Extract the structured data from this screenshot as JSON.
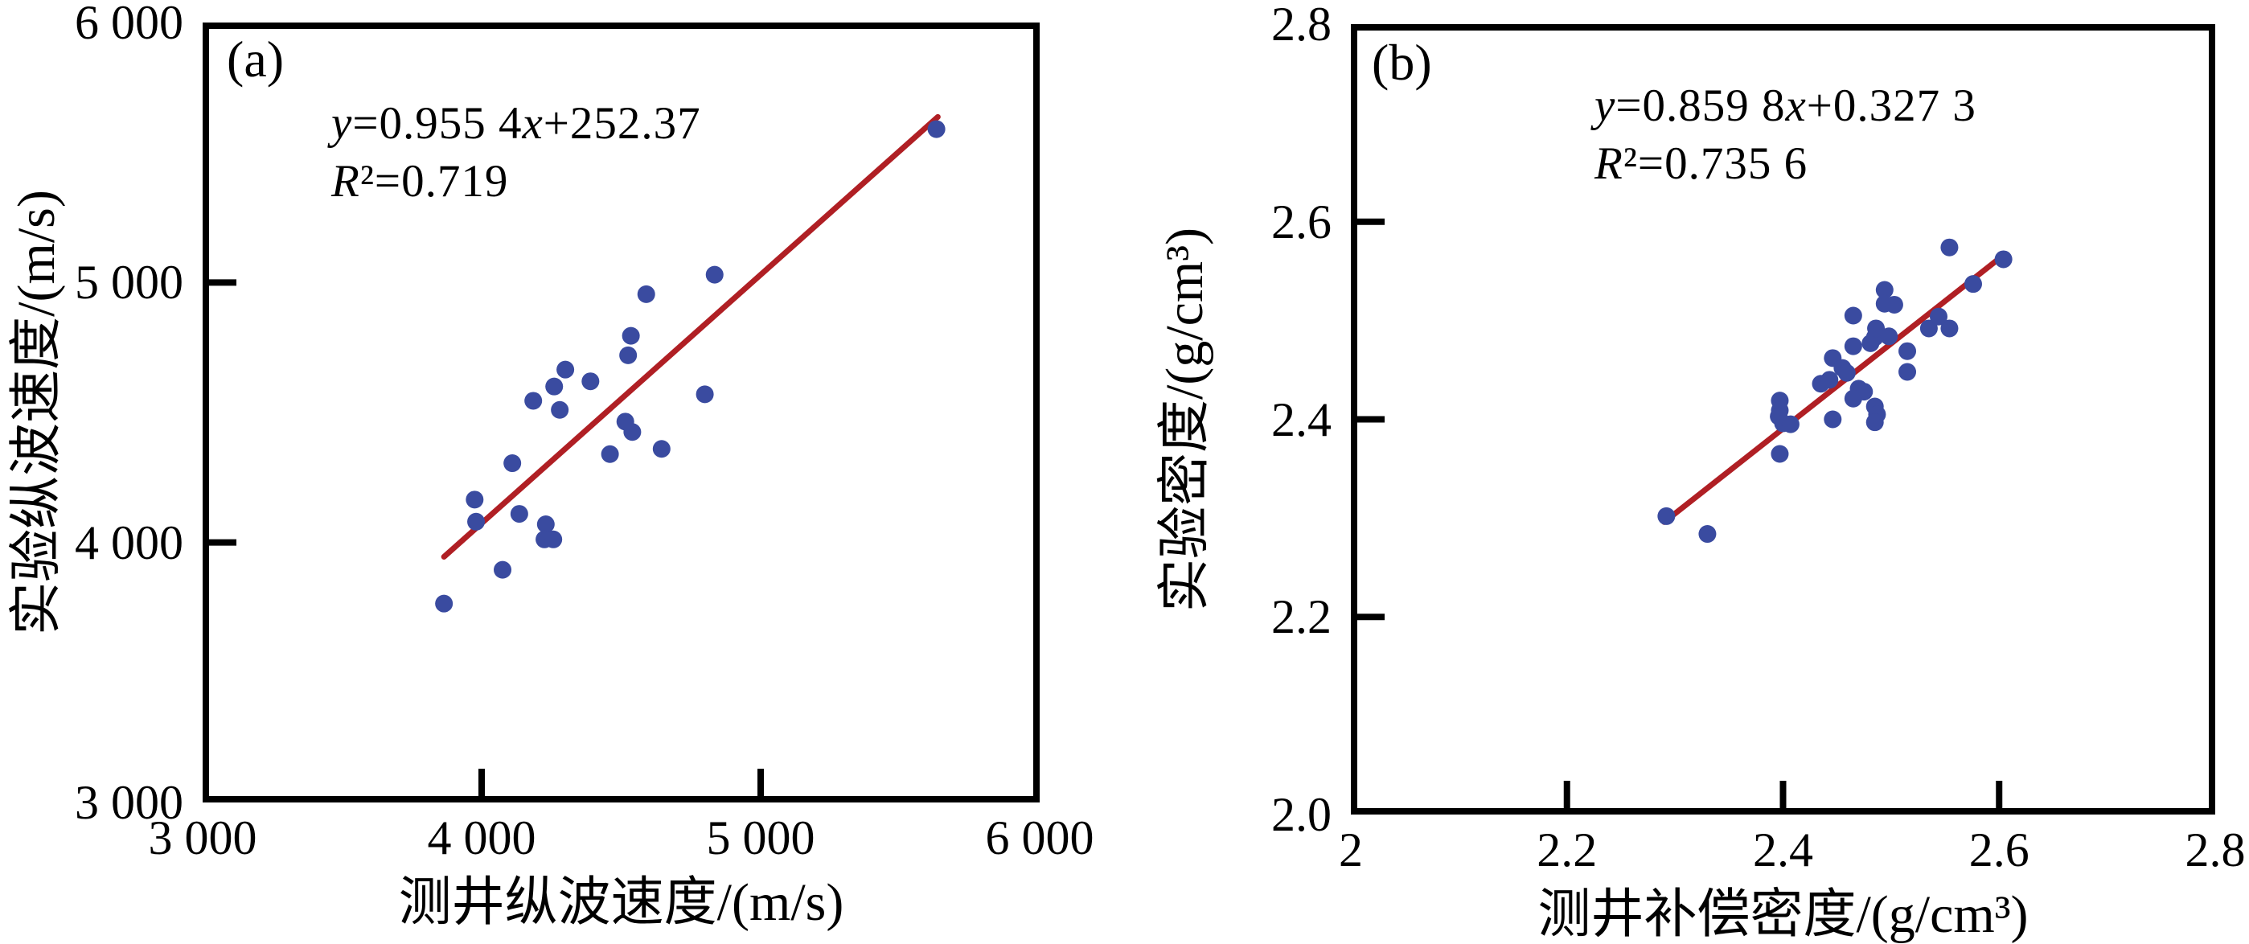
{
  "figure": {
    "background": "#ffffff",
    "point_color": "#3a4ba0",
    "trend_line_color": "#b01f24",
    "axis_color": "#000000"
  },
  "chart_data": [
    {
      "type": "scatter",
      "panel_label": "(a)",
      "equation": "y=0.955 4x+252.37",
      "r_squared": "R²=0.719",
      "xlabel": "测井纵波速度/(m/s)",
      "ylabel": "实验纵波速度/(m/s)",
      "xlim": [
        3000,
        6000
      ],
      "ylim": [
        3000,
        6000
      ],
      "grid": false,
      "x_tick_values": [
        3000,
        4000,
        5000,
        6000
      ],
      "x_tick_labels": [
        "3 000",
        "4 000",
        "5 000",
        "6 000"
      ],
      "y_tick_values": [
        3000,
        4000,
        5000,
        6000
      ],
      "y_tick_labels": [
        "3 000",
        "4 000",
        "5 000",
        "6 000"
      ],
      "trend_line": {
        "slope": 0.9554,
        "intercept": 252.37,
        "x1": 3865,
        "y1": 3945,
        "x2": 5635,
        "y2": 5637
      },
      "points": [
        [
          3865,
          3765
        ],
        [
          4075,
          3895
        ],
        [
          3975,
          4165
        ],
        [
          3980,
          4080
        ],
        [
          4110,
          4305
        ],
        [
          4135,
          4110
        ],
        [
          4230,
          4070
        ],
        [
          4225,
          4012
        ],
        [
          4257,
          4012
        ],
        [
          4185,
          4545
        ],
        [
          4260,
          4600
        ],
        [
          4300,
          4665
        ],
        [
          4390,
          4620
        ],
        [
          4280,
          4510
        ],
        [
          4460,
          4340
        ],
        [
          4515,
          4465
        ],
        [
          4540,
          4425
        ],
        [
          4645,
          4360
        ],
        [
          4535,
          4795
        ],
        [
          4525,
          4720
        ],
        [
          4590,
          4955
        ],
        [
          4835,
          5030
        ],
        [
          4800,
          4570
        ],
        [
          5630,
          5590
        ]
      ]
    },
    {
      "type": "scatter",
      "panel_label": "(b)",
      "equation": "y=0.859 8x+0.327 3",
      "r_squared": "R²=0.735 6",
      "xlabel": "测井补偿密度/(g/cm³)",
      "ylabel": "实验密度/(g/cm³)",
      "xlim": [
        2.0,
        2.8
      ],
      "ylim": [
        2.0,
        2.8
      ],
      "grid": false,
      "x_tick_values": [
        2.0,
        2.2,
        2.4,
        2.6,
        2.8
      ],
      "x_tick_labels": [
        "2",
        "2.2",
        "2.4",
        "2.6",
        "2.8"
      ],
      "y_tick_values": [
        2.0,
        2.2,
        2.4,
        2.6,
        2.8
      ],
      "y_tick_labels": [
        "2.0",
        "2.2",
        "2.4",
        "2.6",
        "2.8"
      ],
      "trend_line": {
        "slope": 0.8598,
        "intercept": 0.3273,
        "x1": 2.29,
        "y1": 2.296,
        "x2": 2.605,
        "y2": 2.567
      },
      "points": [
        [
          2.292,
          2.302
        ],
        [
          2.33,
          2.284
        ],
        [
          2.397,
          2.365
        ],
        [
          2.397,
          2.419
        ],
        [
          2.397,
          2.409
        ],
        [
          2.396,
          2.403
        ],
        [
          2.4,
          2.396
        ],
        [
          2.407,
          2.395
        ],
        [
          2.446,
          2.4
        ],
        [
          2.435,
          2.436
        ],
        [
          2.443,
          2.44
        ],
        [
          2.446,
          2.462
        ],
        [
          2.455,
          2.452
        ],
        [
          2.459,
          2.447
        ],
        [
          2.465,
          2.505
        ],
        [
          2.465,
          2.474
        ],
        [
          2.47,
          2.431
        ],
        [
          2.475,
          2.428
        ],
        [
          2.465,
          2.421
        ],
        [
          2.481,
          2.477
        ],
        [
          2.485,
          2.483
        ],
        [
          2.486,
          2.492
        ],
        [
          2.498,
          2.484
        ],
        [
          2.485,
          2.413
        ],
        [
          2.487,
          2.405
        ],
        [
          2.485,
          2.397
        ],
        [
          2.494,
          2.531
        ],
        [
          2.494,
          2.517
        ],
        [
          2.503,
          2.516
        ],
        [
          2.515,
          2.469
        ],
        [
          2.515,
          2.448
        ],
        [
          2.535,
          2.492
        ],
        [
          2.554,
          2.492
        ],
        [
          2.544,
          2.504
        ],
        [
          2.554,
          2.574
        ],
        [
          2.576,
          2.537
        ],
        [
          2.604,
          2.562
        ]
      ]
    }
  ]
}
